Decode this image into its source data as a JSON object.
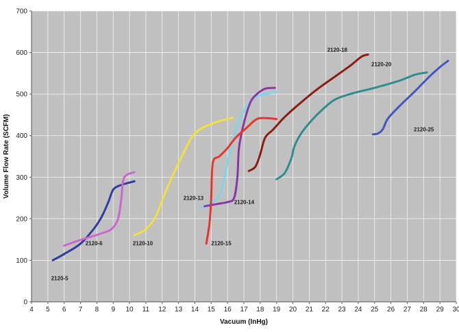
{
  "chart_data": {
    "type": "line",
    "title": "",
    "xlabel": "Vacuum (InHg)",
    "ylabel": "Volume Flow Rate (SCFM)",
    "xlim": [
      4,
      30
    ],
    "ylim": [
      0,
      700
    ],
    "x_ticks": [
      4,
      5,
      6,
      7,
      8,
      9,
      10,
      11,
      12,
      13,
      14,
      15,
      16,
      17,
      18,
      19,
      20,
      21,
      22,
      23,
      24,
      25,
      26,
      27,
      28,
      29,
      30
    ],
    "y_ticks": [
      0,
      100,
      200,
      300,
      400,
      500,
      600,
      700
    ],
    "grid": true,
    "plot_background": "#c0c0c0",
    "legend": "none",
    "series": [
      {
        "name": "2120-5",
        "color": "#2f3d9e",
        "points": [
          [
            5.3,
            100
          ],
          [
            6,
            115
          ],
          [
            7,
            140
          ],
          [
            7.8,
            175
          ],
          [
            8.3,
            205
          ],
          [
            8.7,
            240
          ],
          [
            9,
            270
          ],
          [
            9.4,
            280
          ],
          [
            9.8,
            285
          ],
          [
            10.3,
            290
          ]
        ]
      },
      {
        "name": "2120-6",
        "color": "#cc66cc",
        "points": [
          [
            6,
            135
          ],
          [
            6.7,
            145
          ],
          [
            7.5,
            155
          ],
          [
            8.3,
            165
          ],
          [
            8.9,
            175
          ],
          [
            9.3,
            200
          ],
          [
            9.5,
            250
          ],
          [
            9.6,
            290
          ],
          [
            9.8,
            305
          ],
          [
            10.3,
            312
          ]
        ]
      },
      {
        "name": "2120-10",
        "color": "#f0e040",
        "points": [
          [
            10.3,
            160
          ],
          [
            11,
            175
          ],
          [
            11.6,
            205
          ],
          [
            12,
            245
          ],
          [
            12.6,
            300
          ],
          [
            13.2,
            350
          ],
          [
            13.8,
            395
          ],
          [
            14.3,
            415
          ],
          [
            15,
            428
          ],
          [
            15.7,
            437
          ],
          [
            16.3,
            443
          ]
        ]
      },
      {
        "name": "2120-13",
        "color": "#7fd4e8",
        "points": [
          [
            14.3,
            225
          ],
          [
            15,
            240
          ],
          [
            15.5,
            255
          ],
          [
            15.8,
            300
          ],
          [
            16.2,
            370
          ],
          [
            16.6,
            425
          ],
          [
            17,
            460
          ],
          [
            17.6,
            490
          ],
          [
            18.3,
            500
          ],
          [
            19,
            505
          ]
        ]
      },
      {
        "name": "2120-14",
        "color": "#8a36a8",
        "points": [
          [
            14.6,
            230
          ],
          [
            15.3,
            235
          ],
          [
            16,
            240
          ],
          [
            16.4,
            250
          ],
          [
            16.6,
            300
          ],
          [
            16.7,
            370
          ],
          [
            17,
            430
          ],
          [
            17.4,
            480
          ],
          [
            17.8,
            500
          ],
          [
            18.3,
            513
          ],
          [
            18.9,
            515
          ]
        ]
      },
      {
        "name": "2120-15",
        "color": "#e8342a",
        "points": [
          [
            14.7,
            140
          ],
          [
            14.9,
            190
          ],
          [
            15,
            250
          ],
          [
            15.1,
            335
          ],
          [
            15.5,
            350
          ],
          [
            16,
            370
          ],
          [
            16.5,
            395
          ],
          [
            17.2,
            420
          ],
          [
            17.8,
            440
          ],
          [
            18.4,
            442
          ],
          [
            19,
            440
          ]
        ]
      },
      {
        "name": "2120-18",
        "color": "#8b1e12",
        "points": [
          [
            17.3,
            315
          ],
          [
            17.7,
            325
          ],
          [
            18,
            355
          ],
          [
            18.3,
            395
          ],
          [
            18.8,
            415
          ],
          [
            19.5,
            445
          ],
          [
            20.5,
            480
          ],
          [
            21.5,
            512
          ],
          [
            22.5,
            540
          ],
          [
            23.5,
            568
          ],
          [
            24.2,
            590
          ],
          [
            24.6,
            595
          ]
        ]
      },
      {
        "name": "2120-20",
        "color": "#2e8e8e",
        "points": [
          [
            19,
            295
          ],
          [
            19.5,
            310
          ],
          [
            19.9,
            345
          ],
          [
            20.1,
            375
          ],
          [
            20.5,
            405
          ],
          [
            21,
            430
          ],
          [
            21.6,
            455
          ],
          [
            22.5,
            485
          ],
          [
            23.5,
            500
          ],
          [
            25,
            515
          ],
          [
            26.5,
            532
          ],
          [
            27.5,
            547
          ],
          [
            28.2,
            552
          ]
        ]
      },
      {
        "name": "2120-25",
        "color": "#4455c0",
        "points": [
          [
            24.9,
            403
          ],
          [
            25.2,
            405
          ],
          [
            25.5,
            415
          ],
          [
            25.8,
            440
          ],
          [
            26.5,
            470
          ],
          [
            27.5,
            508
          ],
          [
            28.3,
            540
          ],
          [
            29,
            565
          ],
          [
            29.5,
            580
          ]
        ]
      }
    ],
    "labels": [
      {
        "text": "2120-5",
        "x": 5.2,
        "y": 52
      },
      {
        "text": "2120-6",
        "x": 7.3,
        "y": 136
      },
      {
        "text": "2120-10",
        "x": 10.2,
        "y": 136
      },
      {
        "text": "2120-13",
        "x": 13.3,
        "y": 245
      },
      {
        "text": "2120-14",
        "x": 16.4,
        "y": 235
      },
      {
        "text": "2120-15",
        "x": 15.0,
        "y": 136
      },
      {
        "text": "2120-18",
        "x": 22.1,
        "y": 602
      },
      {
        "text": "2120-20",
        "x": 24.8,
        "y": 567
      },
      {
        "text": "2120-25",
        "x": 27.4,
        "y": 410
      }
    ]
  }
}
